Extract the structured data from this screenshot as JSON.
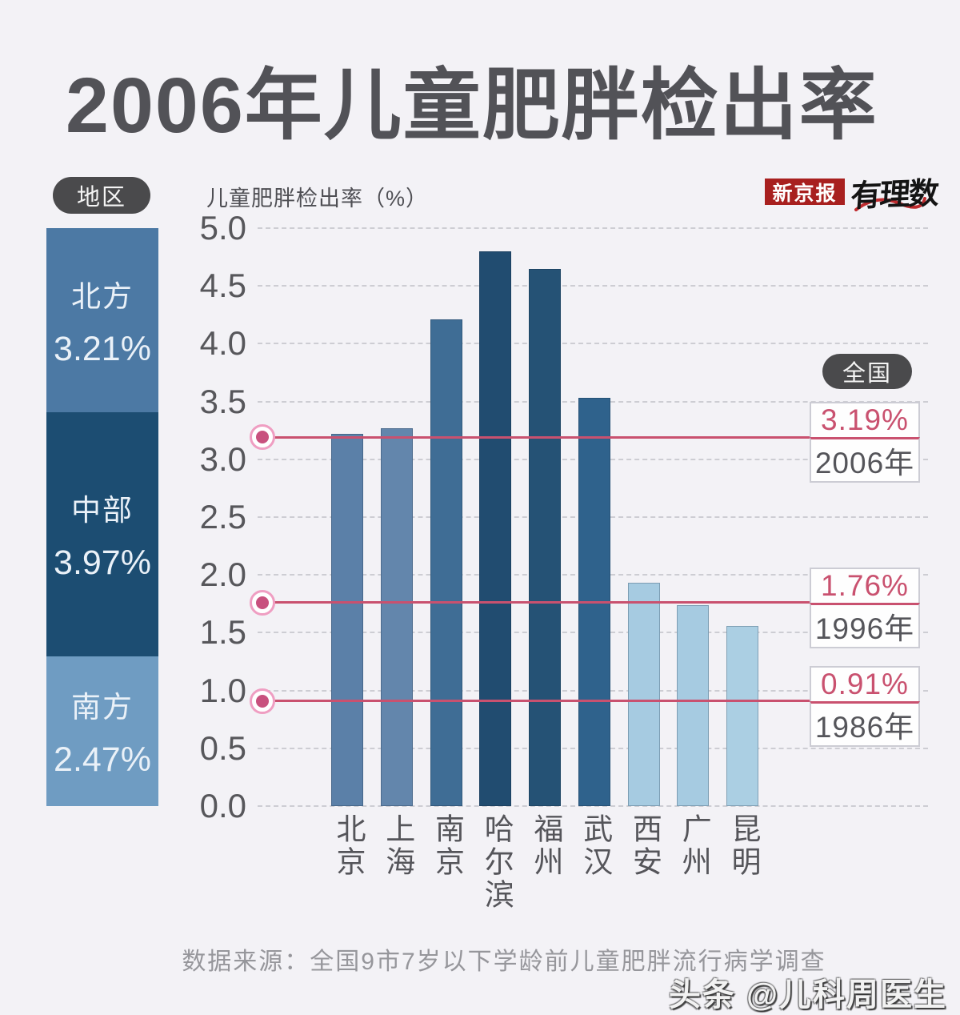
{
  "title": "2006年儿童肥胖检出率",
  "header": {
    "region_pill": "地区",
    "axis_title": "儿童肥胖检出率（%）",
    "logo_xinjingbao": "新京报",
    "logo_youlishu": "有理数"
  },
  "region_legend": {
    "blocks": [
      {
        "name": "北方",
        "value": "3.21%",
        "color": "#4c79a4"
      },
      {
        "name": "中部",
        "value": "3.97%",
        "color": "#1c4d72"
      },
      {
        "name": "南方",
        "value": "2.47%",
        "color": "#6f9cc2"
      }
    ]
  },
  "national": {
    "pill": "全国"
  },
  "chart_data": {
    "type": "bar",
    "title": "2006年儿童肥胖检出率",
    "ylabel": "儿童肥胖检出率（%）",
    "categories": [
      "北京",
      "上海",
      "南京",
      "哈尔滨",
      "福州",
      "武汉",
      "西安",
      "广州",
      "昆明"
    ],
    "values": [
      3.22,
      3.27,
      4.21,
      4.8,
      4.65,
      3.53,
      1.93,
      1.74,
      1.56
    ],
    "bar_colors": [
      "#5b80a8",
      "#6386ac",
      "#3f6d95",
      "#214c70",
      "#255275",
      "#2f628c",
      "#a6cbe1",
      "#a6cbe1",
      "#abcfe3"
    ],
    "ylim": [
      0,
      5
    ],
    "ytick_step": 0.5,
    "grid": "horizontal-dashed",
    "legend_position": "left",
    "reference_lines": [
      {
        "label": "3.19%",
        "year": "2006年",
        "value": 3.19
      },
      {
        "label": "1.76%",
        "year": "1996年",
        "value": 1.76
      },
      {
        "label": "0.91%",
        "year": "1986年",
        "value": 0.91
      }
    ],
    "region_averages": [
      {
        "region": "北方",
        "value": 3.21
      },
      {
        "region": "中部",
        "value": 3.97
      },
      {
        "region": "南方",
        "value": 2.47
      }
    ]
  },
  "footer": {
    "source": "数据来源：全国9市7岁以下学龄前儿童肥胖流行病学调查",
    "watermark": "头条 @儿科周医生"
  },
  "colors": {
    "background": "#f3f2f6",
    "accent_pink": "#c9516f",
    "pill_bg": "#4a4a4c",
    "title_text": "#525257"
  }
}
